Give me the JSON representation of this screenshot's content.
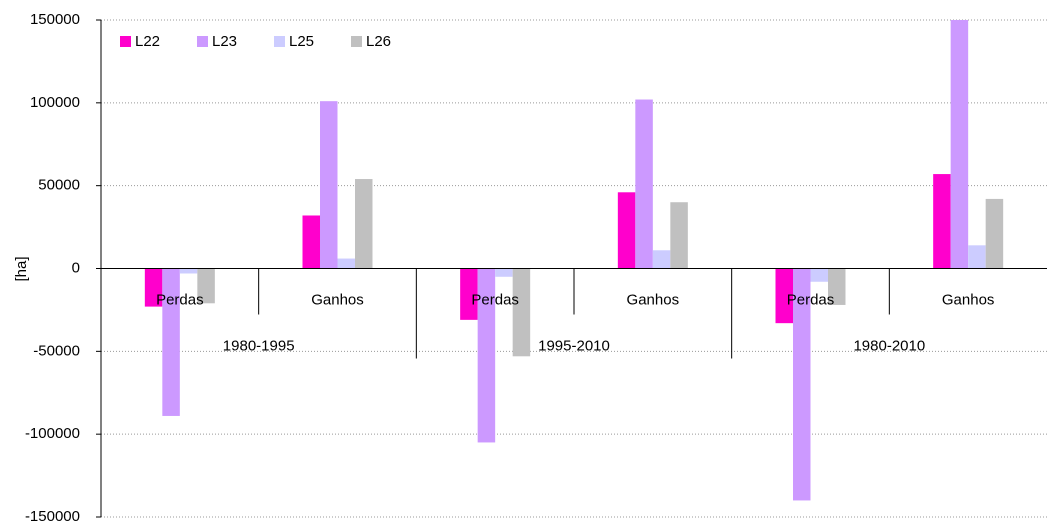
{
  "chart_data": {
    "type": "bar",
    "ylabel": "[ha]",
    "groups": [
      "1980-1995",
      "1995-2010",
      "1980-2010"
    ],
    "categories": [
      "Perdas",
      "Ganhos",
      "Perdas",
      "Ganhos",
      "Perdas",
      "Ganhos"
    ],
    "series": [
      {
        "name": "L22",
        "color": "#ff00cc",
        "values": [
          -23000,
          32000,
          -31000,
          46000,
          -33000,
          57000
        ]
      },
      {
        "name": "L23",
        "color": "#cc99ff",
        "values": [
          -89000,
          101000,
          -105000,
          102000,
          -140000,
          150000
        ]
      },
      {
        "name": "L25",
        "color": "#ccccff",
        "values": [
          -3000,
          6000,
          -5000,
          11000,
          -8000,
          14000
        ]
      },
      {
        "name": "L26",
        "color": "#c0c0c0",
        "values": [
          -21000,
          54000,
          -53000,
          40000,
          -22000,
          42000
        ]
      }
    ],
    "ylim": [
      -150000,
      150000
    ],
    "yticks": [
      -150000,
      -100000,
      -50000,
      0,
      50000,
      100000,
      150000
    ],
    "grid": true,
    "legend": "top-left"
  }
}
